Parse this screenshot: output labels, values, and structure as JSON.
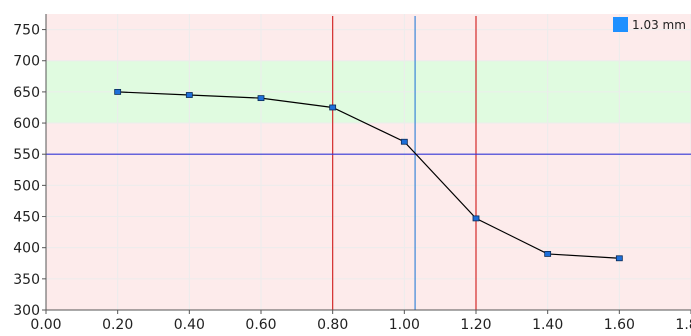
{
  "chart_data": {
    "type": "line",
    "title": "",
    "xlabel": "",
    "ylabel": "",
    "xlim": [
      0.0,
      1.8
    ],
    "ylim": [
      300,
      775
    ],
    "x_ticks": [
      0.0,
      0.2,
      0.4,
      0.6,
      0.8,
      1.0,
      1.2,
      1.4,
      1.6,
      1.8
    ],
    "x_tick_labels": [
      "0.00",
      "0.20",
      "0.40",
      "0.60",
      "0.80",
      "1.00",
      "1.20",
      "1.40",
      "1.60",
      "1.80"
    ],
    "y_ticks": [
      300,
      350,
      400,
      450,
      500,
      550,
      600,
      650,
      700,
      750
    ],
    "y_tick_labels": [
      "300",
      "350",
      "400",
      "450",
      "500",
      "550",
      "600",
      "650",
      "700",
      "750"
    ],
    "grid": true,
    "series": [
      {
        "name": "",
        "x": [
          0.2,
          0.4,
          0.6,
          0.8,
          1.0,
          1.2,
          1.4,
          1.6
        ],
        "y": [
          650,
          645,
          640,
          625,
          570,
          447,
          390,
          383
        ],
        "line_color": "#000000",
        "marker_color": "#1E6FD9"
      }
    ],
    "bands": [
      {
        "y_from": 300,
        "y_to": 600,
        "color": "#FDEBEB"
      },
      {
        "y_from": 600,
        "y_to": 700,
        "color": "#E0FBE0"
      },
      {
        "y_from": 700,
        "y_to": 775,
        "color": "#FDEBEB"
      }
    ],
    "reference_lines": [
      {
        "orientation": "vertical",
        "value": 0.8,
        "color": "#D42A2A"
      },
      {
        "orientation": "vertical",
        "value": 1.2,
        "color": "#D42A2A"
      },
      {
        "orientation": "vertical",
        "value": 1.03,
        "color": "#3A86D8"
      },
      {
        "orientation": "horizontal",
        "value": 550,
        "color": "#3636D6"
      }
    ],
    "legend": {
      "position": "top-right",
      "label": "1.03 mm",
      "color": "#1E90FF"
    }
  }
}
